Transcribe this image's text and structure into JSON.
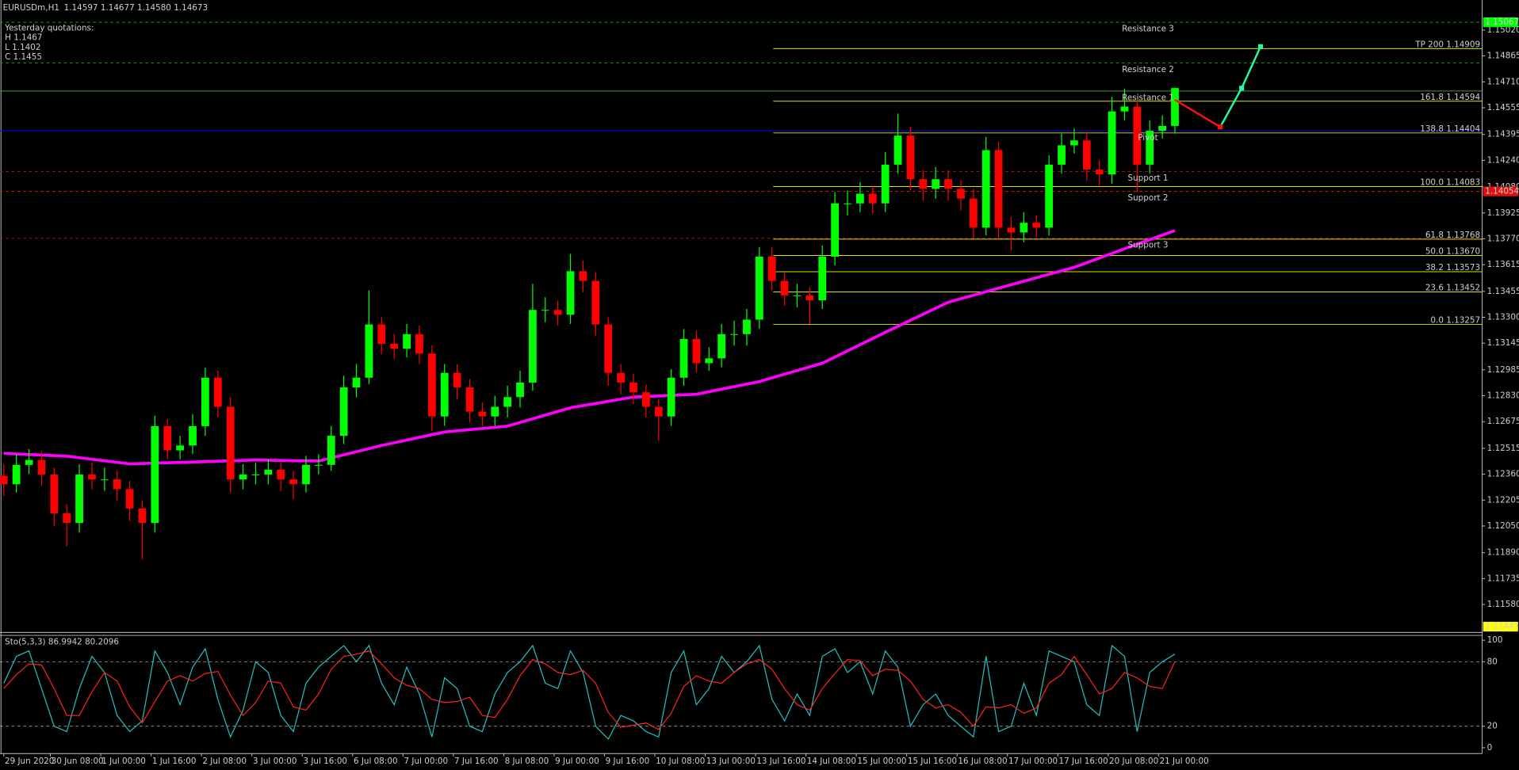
{
  "chart_data": [
    {
      "type": "candlestick",
      "title": "EURUSDm,H1",
      "subtitle": "1.14597 1.14677 1.14580 1.14673",
      "annotations": [
        "Yesterday quotations:",
        "H 1.1467",
        "L 1.1402",
        "C 1.1455"
      ],
      "up_color": "#00ff00",
      "down_color": "#ff0000",
      "xlim": [
        -0.3,
        117.4
      ],
      "ylim": [
        1.11418,
        1.15177
      ],
      "xticks": [
        {
          "value": 0,
          "label": "29 Jun 2020"
        },
        {
          "value": 3.7,
          "label": "30 Jun 08:00"
        },
        {
          "value": 7.7,
          "label": "1 Jul 00:00"
        },
        {
          "value": 11.7,
          "label": "1 Jul 16:00"
        },
        {
          "value": 15.7,
          "label": "2 Jul 08:00"
        },
        {
          "value": 19.7,
          "label": "3 Jul 00:00"
        },
        {
          "value": 23.7,
          "label": "3 Jul 16:00"
        },
        {
          "value": 27.7,
          "label": "6 Jul 08:00"
        },
        {
          "value": 31.7,
          "label": "7 Jul 00:00"
        },
        {
          "value": 35.7,
          "label": "7 Jul 16:00"
        },
        {
          "value": 39.7,
          "label": "8 Jul 08:00"
        },
        {
          "value": 43.7,
          "label": "9 Jul 00:00"
        },
        {
          "value": 47.7,
          "label": "9 Jul 16:00"
        },
        {
          "value": 51.7,
          "label": "10 Jul 08:00"
        },
        {
          "value": 55.7,
          "label": "13 Jul 00:00"
        },
        {
          "value": 59.7,
          "label": "13 Jul 16:00"
        },
        {
          "value": 63.7,
          "label": "14 Jul 08:00"
        },
        {
          "value": 67.7,
          "label": "15 Jul 00:00"
        },
        {
          "value": 71.7,
          "label": "15 Jul 16:00"
        },
        {
          "value": 75.7,
          "label": "16 Jul 08:00"
        },
        {
          "value": 79.7,
          "label": "17 Jul 00:00"
        },
        {
          "value": 83.7,
          "label": "17 Jul 16:00"
        },
        {
          "value": 87.7,
          "label": "20 Jul 08:00"
        },
        {
          "value": 91.7,
          "label": "21 Jul 00:00"
        }
      ],
      "yticks": [
        {
          "value": 1.1502,
          "label": "1.15020"
        },
        1.14865,
        {
          "value": 1.1471,
          "label": "1.14710"
        },
        1.14555,
        1.14395,
        {
          "value": 1.1424,
          "label": "1.14240"
        },
        {
          "value": 1.1408,
          "label": "1.14080"
        },
        1.13925,
        {
          "value": 1.1377,
          "label": "1.13770"
        },
        1.13615,
        1.13455,
        {
          "value": 1.133,
          "label": "1.13300"
        },
        1.13145,
        1.12985,
        {
          "value": 1.1283,
          "label": "1.12830"
        },
        1.12675,
        1.12515,
        {
          "value": 1.1236,
          "label": "1.12360"
        },
        1.12205,
        {
          "value": 1.1205,
          "label": "1.12050"
        },
        {
          "value": 1.1189,
          "label": "1.11890"
        },
        1.11735,
        {
          "value": 1.1158,
          "label": "1.11580"
        }
      ],
      "open": [
        1.1235,
        1.123,
        1.12416,
        1.12445,
        1.12358,
        1.12126,
        1.12068,
        1.12358,
        1.12329,
        1.12329,
        1.12271,
        1.12155,
        1.12068,
        1.12648,
        1.12503,
        1.12532,
        1.12648,
        1.12938,
        1.12764,
        1.12329,
        1.12358,
        1.12358,
        1.12387,
        1.12329,
        1.123,
        1.12416,
        1.12416,
        1.1259,
        1.1288,
        1.12938,
        1.13257,
        1.13141,
        1.13112,
        1.13199,
        1.13083,
        1.12706,
        1.12967,
        1.1288,
        1.12735,
        1.12706,
        1.12764,
        1.12822,
        1.12909,
        1.13344,
        1.13344,
        1.13315,
        1.13576,
        1.13518,
        1.13257,
        1.12967,
        1.12909,
        1.12851,
        1.12764,
        1.12706,
        1.12938,
        1.1317,
        1.13025,
        1.13054,
        1.13199,
        1.13199,
        1.13286,
        1.13663,
        1.13518,
        1.13431,
        1.13431,
        1.13402,
        1.13663,
        1.13982,
        1.13982,
        1.1404,
        1.13982,
        1.14214,
        1.14388,
        1.14127,
        1.14069,
        1.14127,
        1.14069,
        1.14011,
        1.13837,
        1.14301,
        1.13837,
        1.13808,
        1.13866,
        1.13837,
        1.14214,
        1.1433,
        1.14359,
        1.14185,
        1.14156,
        1.14533,
        1.14562,
        1.14214,
        1.14417,
        1.14446
      ],
      "high": [
        1.1242,
        1.1248,
        1.1251,
        1.125,
        1.124,
        1.1218,
        1.1242,
        1.1243,
        1.124,
        1.1238,
        1.1232,
        1.122,
        1.1271,
        1.1269,
        1.1259,
        1.1272,
        1.13,
        1.1298,
        1.1282,
        1.1242,
        1.1243,
        1.1245,
        1.1243,
        1.1238,
        1.1247,
        1.1248,
        1.1265,
        1.1295,
        1.1302,
        1.1346,
        1.133,
        1.132,
        1.1326,
        1.1325,
        1.1313,
        1.1302,
        1.1302,
        1.1293,
        1.1279,
        1.1283,
        1.1289,
        1.1298,
        1.135,
        1.1342,
        1.134,
        1.1368,
        1.1364,
        1.1357,
        1.133,
        1.1302,
        1.1296,
        1.129,
        1.1281,
        1.1299,
        1.1323,
        1.1322,
        1.1312,
        1.1326,
        1.1328,
        1.1335,
        1.1372,
        1.1372,
        1.1357,
        1.135,
        1.1348,
        1.1373,
        1.1405,
        1.1406,
        1.1411,
        1.1409,
        1.1429,
        1.1452,
        1.1444,
        1.1418,
        1.142,
        1.1418,
        1.1412,
        1.1407,
        1.1438,
        1.1435,
        1.139,
        1.1393,
        1.1391,
        1.1427,
        1.144,
        1.1443,
        1.1441,
        1.1424,
        1.1462,
        1.1467,
        1.146,
        1.1448,
        1.1451,
        1.14677
      ],
      "low": [
        1.1223,
        1.1225,
        1.1236,
        1.1229,
        1.1205,
        1.1193,
        1.1201,
        1.1227,
        1.1226,
        1.122,
        1.1208,
        1.1185,
        1.1201,
        1.1245,
        1.1245,
        1.1248,
        1.1259,
        1.127,
        1.1225,
        1.1227,
        1.123,
        1.123,
        1.1226,
        1.1221,
        1.1225,
        1.1236,
        1.1238,
        1.1254,
        1.1282,
        1.129,
        1.1308,
        1.1305,
        1.1306,
        1.1302,
        1.1262,
        1.1265,
        1.1281,
        1.1267,
        1.1265,
        1.1265,
        1.127,
        1.1276,
        1.1286,
        1.1327,
        1.1325,
        1.1326,
        1.1345,
        1.1319,
        1.1289,
        1.1284,
        1.1278,
        1.127,
        1.1256,
        1.1265,
        1.1289,
        1.1297,
        1.1298,
        1.13,
        1.1313,
        1.1313,
        1.1323,
        1.1346,
        1.1337,
        1.1336,
        1.1326,
        1.1335,
        1.1361,
        1.1391,
        1.1393,
        1.1392,
        1.1393,
        1.1416,
        1.1406,
        1.14,
        1.1401,
        1.14,
        1.1394,
        1.1377,
        1.1379,
        1.1377,
        1.137,
        1.1375,
        1.1378,
        1.1379,
        1.1416,
        1.1428,
        1.1412,
        1.1409,
        1.141,
        1.1448,
        1.1405,
        1.1416,
        1.1437,
        1.144
      ],
      "close": [
        1.123,
        1.12416,
        1.12445,
        1.12358,
        1.12126,
        1.12068,
        1.12358,
        1.12329,
        1.12329,
        1.12271,
        1.12155,
        1.12068,
        1.12648,
        1.12503,
        1.12532,
        1.12648,
        1.12938,
        1.12764,
        1.12329,
        1.12358,
        1.12358,
        1.12387,
        1.12329,
        1.123,
        1.12416,
        1.12416,
        1.1259,
        1.1288,
        1.12938,
        1.13257,
        1.13141,
        1.13112,
        1.13199,
        1.13083,
        1.12706,
        1.12967,
        1.1288,
        1.12735,
        1.12706,
        1.12764,
        1.12822,
        1.12909,
        1.13344,
        1.13344,
        1.13315,
        1.13576,
        1.13518,
        1.13257,
        1.12967,
        1.12909,
        1.12851,
        1.12764,
        1.12706,
        1.12938,
        1.1317,
        1.13025,
        1.13054,
        1.13199,
        1.13199,
        1.13286,
        1.13663,
        1.13518,
        1.13431,
        1.13431,
        1.13402,
        1.13663,
        1.13982,
        1.13982,
        1.1404,
        1.13982,
        1.14214,
        1.14388,
        1.14127,
        1.14069,
        1.14127,
        1.14069,
        1.14011,
        1.13837,
        1.14301,
        1.13837,
        1.13808,
        1.13866,
        1.13837,
        1.14214,
        1.1433,
        1.14359,
        1.14185,
        1.14156,
        1.14533,
        1.14562,
        1.14214,
        1.14417,
        1.14446,
        1.14673
      ],
      "ma": {
        "color": "#ff00ff",
        "x": [
          0,
          5,
          10,
          15,
          20,
          25,
          30,
          35,
          40,
          45,
          50,
          55,
          60,
          65,
          70,
          75,
          80,
          85,
          90,
          93
        ],
        "values": [
          1.12485,
          1.12468,
          1.12422,
          1.12433,
          1.12445,
          1.12439,
          1.12532,
          1.12613,
          1.12648,
          1.12758,
          1.12822,
          1.12839,
          1.12915,
          1.13025,
          1.1321,
          1.1339,
          1.13495,
          1.13599,
          1.13738,
          1.13819
        ]
      },
      "levels": [
        {
          "name": "Resistance 3",
          "value": 1.15067,
          "color": "#00b400",
          "dashed": true
        },
        {
          "name": "Resistance 2",
          "value": 1.14823,
          "color": "#00a000",
          "dashed": true
        },
        {
          "name": "Resistance 1",
          "value": 1.14655,
          "color": "#4f8f4f",
          "dashed": false
        },
        {
          "name": "Pivot",
          "value": 1.14416,
          "color": "#0000ff",
          "dashed": false
        },
        {
          "name": "Support 1",
          "value": 1.14173,
          "color": "#a01010",
          "dashed": true
        },
        {
          "name": "Support 2",
          "value": 1.14054,
          "color": "#e01010",
          "dashed": true
        },
        {
          "name": "Support 3",
          "value": 1.13773,
          "color": "#c01010",
          "dashed": true
        }
      ],
      "fib": {
        "color": "#e0e000",
        "x_start": 61.1,
        "levels": [
          {
            "label": "TP 200 1.14909",
            "value": 1.14909
          },
          {
            "label": "161.8 1.14594",
            "value": 1.14594
          },
          {
            "label": "138.8 1.14404",
            "value": 1.14404
          },
          {
            "label": "100.0 1.14083",
            "value": 1.14083
          },
          {
            "label": "61.8 1.13768",
            "value": 1.13768
          },
          {
            "label": "50.0 1.13670",
            "value": 1.1367
          },
          {
            "label": "38.2 1.13573",
            "value": 1.13573
          },
          {
            "label": "23.6 1.13452",
            "value": 1.13452
          },
          {
            "label": "0.0 1.13257",
            "value": 1.13257
          }
        ]
      },
      "projection": {
        "x": [
          93,
          96.6,
          98.3,
          99.8
        ],
        "values": [
          1.14602,
          1.1444,
          1.14672,
          1.14921
        ],
        "colors": [
          "#ff1010",
          "#20ffa0",
          "#20ffa0"
        ]
      },
      "price_labels": [
        {
          "value": 1.15067,
          "color": "#00ff00"
        },
        {
          "value": 1.14054,
          "color": "#e01010"
        },
        {
          "value": 1.11447,
          "color": "#ffff00"
        }
      ]
    },
    {
      "type": "line",
      "title": "Sto(5,3,3) 86.9942 80.2096",
      "xlim": [
        -0.3,
        117.4
      ],
      "ylim": [
        0,
        100
      ],
      "yticks": [
        0,
        20,
        80,
        100
      ],
      "levels": [
        20,
        80
      ],
      "series": [
        {
          "color": "#20c0c0",
          "values": [
            60,
            85,
            90,
            55,
            20,
            15,
            55,
            85,
            70,
            30,
            15,
            25,
            90,
            70,
            40,
            75,
            92,
            45,
            10,
            35,
            80,
            70,
            30,
            15,
            60,
            75,
            85,
            95,
            80,
            95,
            60,
            40,
            75,
            50,
            10,
            65,
            55,
            20,
            15,
            50,
            70,
            80,
            95,
            60,
            55,
            90,
            70,
            20,
            8,
            30,
            25,
            15,
            10,
            70,
            90,
            40,
            55,
            85,
            70,
            80,
            95,
            45,
            25,
            50,
            30,
            85,
            92,
            70,
            80,
            50,
            90,
            75,
            20,
            40,
            50,
            30,
            20,
            10,
            85,
            15,
            20,
            60,
            30,
            90,
            85,
            80,
            40,
            30,
            95,
            85,
            15,
            70,
            80,
            86.9942
          ]
        },
        {
          "color": "#ff2020",
          "values": [
            55,
            68,
            78,
            77,
            55,
            30,
            30,
            52,
            70,
            62,
            38,
            23,
            43,
            62,
            67,
            62,
            69,
            71,
            49,
            30,
            42,
            62,
            60,
            38,
            35,
            50,
            73,
            85,
            87,
            90,
            78,
            65,
            58,
            55,
            45,
            42,
            43,
            47,
            30,
            28,
            45,
            67,
            82,
            78,
            70,
            68,
            72,
            60,
            33,
            19,
            21,
            23,
            17,
            32,
            57,
            67,
            62,
            60,
            70,
            78,
            82,
            73,
            55,
            40,
            35,
            55,
            69,
            82,
            81,
            67,
            73,
            72,
            62,
            45,
            37,
            40,
            33,
            20,
            38,
            37,
            40,
            32,
            37,
            60,
            68,
            85,
            68,
            50,
            55,
            70,
            65,
            57,
            55,
            80.2096
          ]
        }
      ]
    }
  ]
}
